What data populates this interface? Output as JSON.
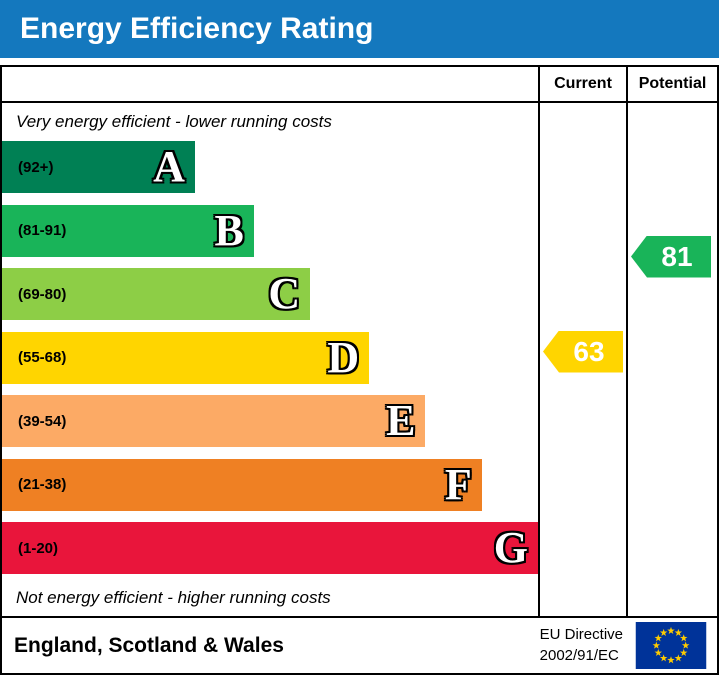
{
  "banner": {
    "title": "Energy Efficiency Rating",
    "bg_color": "#1478be"
  },
  "table": {
    "current_header": "Current",
    "potential_header": "Potential"
  },
  "notes": {
    "top": "Very energy efficient - lower running costs",
    "bottom": "Not energy efficient - higher running costs"
  },
  "chart_data": {
    "type": "bar",
    "title": "Energy Efficiency Rating",
    "bands": [
      {
        "letter": "A",
        "range": "(92+)",
        "lo": 92,
        "hi": 100,
        "color": "#008054",
        "width_pct": 36
      },
      {
        "letter": "B",
        "range": "(81-91)",
        "lo": 81,
        "hi": 91,
        "color": "#19b459",
        "width_pct": 47
      },
      {
        "letter": "C",
        "range": "(69-80)",
        "lo": 69,
        "hi": 80,
        "color": "#8dce46",
        "width_pct": 57.5
      },
      {
        "letter": "D",
        "range": "(55-68)",
        "lo": 55,
        "hi": 68,
        "color": "#ffd500",
        "width_pct": 68.5
      },
      {
        "letter": "E",
        "range": "(39-54)",
        "lo": 39,
        "hi": 54,
        "color": "#fcaa65",
        "width_pct": 79
      },
      {
        "letter": "F",
        "range": "(21-38)",
        "lo": 21,
        "hi": 38,
        "color": "#ef8023",
        "width_pct": 89.5
      },
      {
        "letter": "G",
        "range": "(1-20)",
        "lo": 1,
        "hi": 20,
        "color": "#e9153b",
        "width_pct": 100
      }
    ],
    "current": {
      "label": "Current",
      "score": 63,
      "band": "D"
    },
    "potential": {
      "label": "Potential",
      "score": 81,
      "band": "B"
    }
  },
  "footer": {
    "region": "England, Scotland & Wales",
    "directive_line1": "EU Directive",
    "directive_line2": "2002/91/EC"
  }
}
